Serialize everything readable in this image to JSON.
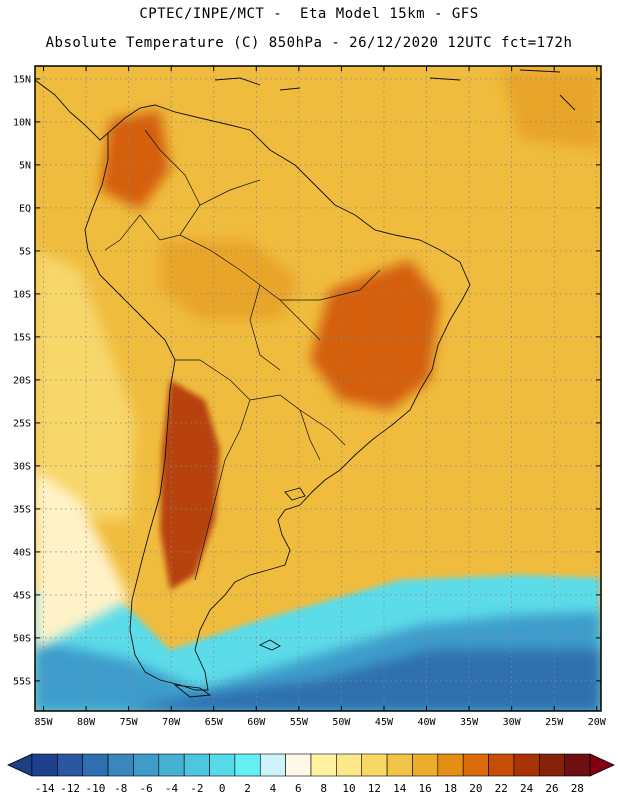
{
  "header": {
    "line1": "CPTEC/INPE/MCT -  Eta Model 15km - GFS",
    "line2": "Absolute Temperature (C) 850hPa - 26/12/2020 12UTC fct=172h"
  },
  "map": {
    "lon_range": [
      -86,
      -19.5
    ],
    "lat_range": [
      -58.5,
      16.5
    ],
    "lat_labels": [
      "15N",
      "10N",
      "5N",
      "EQ",
      "5S",
      "10S",
      "15S",
      "20S",
      "25S",
      "30S",
      "35S",
      "40S",
      "45S",
      "50S",
      "55S"
    ],
    "lat_values": [
      15,
      10,
      5,
      0,
      -5,
      -10,
      -15,
      -20,
      -25,
      -30,
      -35,
      -40,
      -45,
      -50,
      -55
    ],
    "lon_labels": [
      "85W",
      "80W",
      "75W",
      "70W",
      "65W",
      "60W",
      "55W",
      "50W",
      "45W",
      "40W",
      "35W",
      "30W",
      "25W",
      "20W"
    ],
    "lon_values": [
      -85,
      -80,
      -75,
      -70,
      -65,
      -60,
      -55,
      -50,
      -45,
      -40,
      -35,
      -30,
      -25,
      -20
    ]
  },
  "colorbar": {
    "labels": [
      "-14",
      "-12",
      "-10",
      "-8",
      "-6",
      "-4",
      "-2",
      "0",
      "2",
      "4",
      "6",
      "8",
      "10",
      "12",
      "14",
      "16",
      "18",
      "20",
      "22",
      "24",
      "26",
      "28"
    ],
    "colors": [
      "#1f3f8f",
      "#2a57a0",
      "#2f6faf",
      "#3a86bd",
      "#3f9cc8",
      "#46b2d3",
      "#4dc6de",
      "#56dae8",
      "#66f0f5",
      "#cdf4fb",
      "#fff8e6",
      "#fff2a0",
      "#fde98a",
      "#f8d967",
      "#f0c445",
      "#ecad2c",
      "#e48e16",
      "#da6c0c",
      "#c64e07",
      "#a83406",
      "#86210a",
      "#6e0f12"
    ],
    "low_arrow_color": "#1e3f86",
    "high_arrow_color": "#800012"
  },
  "palette": {
    "ocean_mid": "#f0bc3e",
    "ocean_warm": "#e8a52a",
    "hot": "#d45f0c",
    "very_hot": "#b8420a",
    "cool_land": "#f7d66a",
    "southern_cold": "#5cdbe9",
    "deep_cold": "#3c9ccb",
    "coast_line": "#111111"
  }
}
